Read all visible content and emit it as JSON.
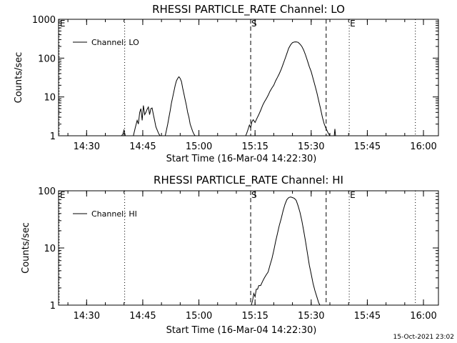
{
  "footer": {
    "timestamp": "15-Oct-2021 23:02"
  },
  "chart_data": [
    {
      "type": "line",
      "title": "RHESSI PARTICLE_RATE Channel: LO",
      "xlabel": "Start Time (16-Mar-04 14:22:30)",
      "ylabel": "Counts/sec",
      "yscale": "log",
      "ylim": [
        1,
        1000
      ],
      "xlim": [
        "14:22:30",
        "16:04:00"
      ],
      "yticks": [
        {
          "value": 1,
          "label": "1"
        },
        {
          "value": 10,
          "label": "10"
        },
        {
          "value": 100,
          "label": "100"
        },
        {
          "value": 1000,
          "label": "1000"
        }
      ],
      "xticks": [
        {
          "value": "14:30",
          "label": "14:30"
        },
        {
          "value": "14:45",
          "label": "14:45"
        },
        {
          "value": "15:00",
          "label": "15:00"
        },
        {
          "value": "15:15",
          "label": "15:15"
        },
        {
          "value": "15:30",
          "label": "15:30"
        },
        {
          "value": "15:45",
          "label": "15:45"
        },
        {
          "value": "16:00",
          "label": "16:00"
        }
      ],
      "legend": {
        "label": "Channel: LO",
        "position": "top-left"
      },
      "markers": [
        {
          "time": "14:22:40",
          "label": "E",
          "style": "dotted"
        },
        {
          "time": "14:40:10",
          "label": "",
          "style": "dotted"
        },
        {
          "time": "15:13:50",
          "label": "S",
          "style": "dashed"
        },
        {
          "time": "15:34:00",
          "label": "",
          "style": "dashed"
        },
        {
          "time": "15:40:10",
          "label": "E",
          "style": "dotted"
        },
        {
          "time": "15:57:50",
          "label": "",
          "style": "dotted"
        }
      ],
      "segments": [
        {
          "name": "burst-1",
          "x": [
            "14:39:20",
            "14:39:40",
            "14:40:00",
            "14:40:20"
          ],
          "y": [
            1,
            1.1,
            1.4,
            1
          ]
        },
        {
          "name": "burst-2",
          "x": [
            "14:42:30",
            "14:43:00",
            "14:43:30",
            "14:43:50",
            "14:44:10",
            "14:44:30",
            "14:44:50",
            "14:45:10",
            "14:45:30",
            "14:45:50",
            "14:46:10",
            "14:46:30",
            "14:46:50",
            "14:47:10",
            "14:47:30",
            "14:47:50",
            "14:48:10",
            "14:48:30",
            "14:49:00",
            "14:49:20",
            "14:49:40"
          ],
          "y": [
            1,
            1.6,
            2.5,
            2,
            4,
            5,
            2.5,
            6,
            3.5,
            4,
            4.8,
            5.5,
            3.5,
            5,
            5.2,
            3.5,
            2.5,
            1.7,
            1.3,
            1.1,
            1
          ]
        },
        {
          "name": "burst-3",
          "x": [
            "14:51:00",
            "14:51:20",
            "14:51:40",
            "14:52:00",
            "14:52:20",
            "14:52:40",
            "14:53:00",
            "14:53:20",
            "14:53:40",
            "14:54:00",
            "14:54:20",
            "14:54:40",
            "14:55:00",
            "14:55:20",
            "14:55:40",
            "14:56:00",
            "14:56:20",
            "14:56:40",
            "14:57:00",
            "14:57:20",
            "14:57:40",
            "14:58:00",
            "14:58:20",
            "14:58:40",
            "14:59:00"
          ],
          "y": [
            1,
            1.4,
            2,
            3,
            4.5,
            7,
            10,
            14,
            20,
            26,
            30,
            33,
            30,
            25,
            17,
            12,
            8.5,
            6,
            4,
            3,
            2,
            1.6,
            1.3,
            1.1,
            1
          ]
        },
        {
          "name": "event",
          "x": [
            "15:12:30",
            "15:12:50",
            "15:13:10",
            "15:13:30",
            "15:13:50",
            "15:14:10",
            "15:14:30",
            "15:15:00",
            "15:15:30",
            "15:16:00",
            "15:16:30",
            "15:17:00",
            "15:17:30",
            "15:18:00",
            "15:18:30",
            "15:19:00",
            "15:19:30",
            "15:20:00",
            "15:20:30",
            "15:21:00",
            "15:21:30",
            "15:22:00",
            "15:22:30",
            "15:23:00",
            "15:23:30",
            "15:24:00",
            "15:24:30",
            "15:25:00",
            "15:25:30",
            "15:26:00",
            "15:26:30",
            "15:27:00",
            "15:27:30",
            "15:28:00",
            "15:28:30",
            "15:29:00",
            "15:29:30",
            "15:30:00",
            "15:30:30",
            "15:31:00",
            "15:31:30",
            "15:32:00",
            "15:32:30",
            "15:33:00",
            "15:33:30",
            "15:34:00",
            "15:34:30",
            "15:35:00"
          ],
          "y": [
            1,
            1.2,
            1.5,
            1.9,
            1.6,
            2.3,
            2.6,
            2.2,
            2.8,
            3.5,
            4.5,
            6,
            7.5,
            9,
            11,
            14,
            17,
            20,
            26,
            32,
            40,
            52,
            70,
            95,
            130,
            180,
            220,
            250,
            260,
            262,
            255,
            230,
            200,
            160,
            120,
            85,
            60,
            45,
            30,
            20,
            13,
            8,
            5,
            3,
            2,
            1.5,
            1.2,
            1
          ]
        },
        {
          "name": "tail",
          "x": [
            "15:36:10",
            "15:36:20",
            "15:36:30"
          ],
          "y": [
            1,
            1.5,
            1
          ]
        }
      ]
    },
    {
      "type": "line",
      "title": "RHESSI PARTICLE_RATE Channel: HI",
      "xlabel": "Start Time (16-Mar-04 14:22:30)",
      "ylabel": "Counts/sec",
      "yscale": "log",
      "ylim": [
        1,
        100
      ],
      "xlim": [
        "14:22:30",
        "16:04:00"
      ],
      "yticks": [
        {
          "value": 1,
          "label": "1"
        },
        {
          "value": 10,
          "label": "10"
        },
        {
          "value": 100,
          "label": "100"
        }
      ],
      "xticks": [
        {
          "value": "14:30",
          "label": "14:30"
        },
        {
          "value": "14:45",
          "label": "14:45"
        },
        {
          "value": "15:00",
          "label": "15:00"
        },
        {
          "value": "15:15",
          "label": "15:15"
        },
        {
          "value": "15:30",
          "label": "15:30"
        },
        {
          "value": "15:45",
          "label": "15:45"
        },
        {
          "value": "16:00",
          "label": "16:00"
        }
      ],
      "legend": {
        "label": "Channel: HI",
        "position": "top-left"
      },
      "markers": [
        {
          "time": "14:22:40",
          "label": "E",
          "style": "dotted"
        },
        {
          "time": "14:40:10",
          "label": "",
          "style": "dotted"
        },
        {
          "time": "15:13:50",
          "label": "S",
          "style": "dashed"
        },
        {
          "time": "15:34:00",
          "label": "",
          "style": "dashed"
        },
        {
          "time": "15:40:10",
          "label": "E",
          "style": "dotted"
        },
        {
          "time": "15:57:50",
          "label": "",
          "style": "dotted"
        }
      ],
      "segments": [
        {
          "name": "event",
          "x": [
            "15:14:00",
            "15:14:20",
            "15:14:40",
            "15:15:00",
            "15:15:20",
            "15:15:40",
            "15:16:00",
            "15:16:30",
            "15:17:00",
            "15:17:30",
            "15:18:00",
            "15:18:30",
            "15:19:00",
            "15:19:30",
            "15:20:00",
            "15:20:30",
            "15:21:00",
            "15:21:30",
            "15:22:00",
            "15:22:30",
            "15:23:00",
            "15:23:30",
            "15:24:00",
            "15:24:30",
            "15:25:00",
            "15:25:30",
            "15:26:00",
            "15:26:30",
            "15:27:00",
            "15:27:30",
            "15:28:00",
            "15:28:30",
            "15:29:00",
            "15:29:30",
            "15:30:00",
            "15:30:30",
            "15:31:00",
            "15:31:30",
            "15:32:00",
            "15:32:20"
          ],
          "y": [
            1,
            1.2,
            1.6,
            1.4,
            1.9,
            1.9,
            2.2,
            2.2,
            2.6,
            3,
            3.4,
            3.8,
            5,
            6.5,
            9,
            13,
            18,
            25,
            33,
            45,
            58,
            70,
            76,
            78,
            76,
            74,
            68,
            55,
            42,
            30,
            20,
            13,
            8,
            5,
            3.5,
            2.4,
            1.8,
            1.4,
            1.1,
            1
          ]
        }
      ]
    }
  ]
}
